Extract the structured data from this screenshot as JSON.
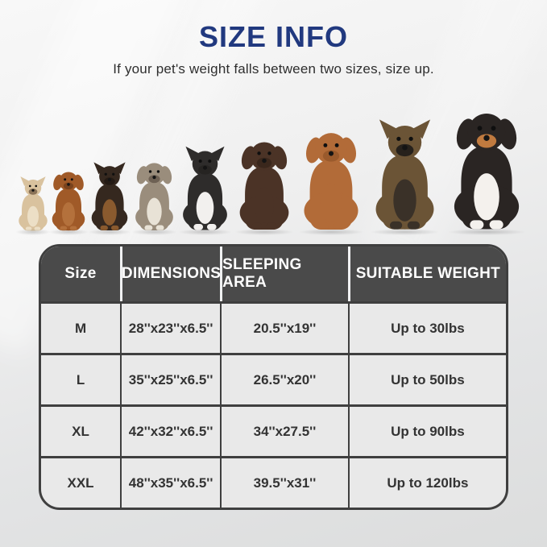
{
  "theme": {
    "title-color": "#21397f",
    "header-bg": "#4a4a4a",
    "header-text": "#ffffff",
    "cell-bg": "#e9e9e9",
    "border-color": "#3f3f3f"
  },
  "header": {
    "title": "SIZE INFO",
    "subtitle": "If your pet's weight falls between two sizes, size up."
  },
  "illustration": {
    "dogs": [
      {
        "icon": "french-bulldog-dog-icon",
        "height": 70,
        "color": "#d9c29e",
        "chest": "#ecdfc6",
        "muzzle": "#8a7257"
      },
      {
        "icon": "cavalier-spaniel-dog-icon",
        "height": 80,
        "color": "#a05a28",
        "chest": "#b4713c",
        "muzzle": "#7a431d"
      },
      {
        "icon": "miniature-pinscher-dog-icon",
        "height": 88,
        "color": "#35281f",
        "chest": "#8a5a2e",
        "muzzle": "#241a14"
      },
      {
        "icon": "english-bulldog-dog-icon",
        "height": 92,
        "color": "#9a8d7c",
        "chest": "#e8e2d6",
        "muzzle": "#6e6154"
      },
      {
        "icon": "border-collie-dog-icon",
        "height": 108,
        "color": "#2e2c2b",
        "chest": "#f2f0ee",
        "muzzle": "#262422"
      },
      {
        "icon": "chocolate-labrador-dog-icon",
        "height": 120,
        "color": "#4b3326",
        "chest": "#4b3326",
        "muzzle": "#3a271c"
      },
      {
        "icon": "vizsla-dog-icon",
        "height": 132,
        "color": "#b26b38",
        "chest": "#b26b38",
        "muzzle": "#9a5a2c"
      },
      {
        "icon": "german-shepherd-dog-icon",
        "height": 142,
        "color": "#6b5436",
        "chest": "#3a3128",
        "muzzle": "#26211c"
      },
      {
        "icon": "bernese-mountain-dog-icon",
        "height": 158,
        "color": "#2a2523",
        "chest": "#f4f1ed",
        "muzzle": "#c07a3f"
      }
    ]
  },
  "table": {
    "columns": [
      "Size",
      "DIMENSIONS",
      "SLEEPING AREA",
      "SUITABLE WEIGHT"
    ],
    "rows": [
      {
        "size": "M",
        "dimensions": "28''x23''x6.5''",
        "sleeping_area": "20.5''x19''",
        "suitable_weight": "Up to 30lbs"
      },
      {
        "size": "L",
        "dimensions": "35''x25''x6.5''",
        "sleeping_area": "26.5''x20''",
        "suitable_weight": "Up to 50lbs"
      },
      {
        "size": "XL",
        "dimensions": "42''x32''x6.5''",
        "sleeping_area": "34''x27.5''",
        "suitable_weight": "Up to 90lbs"
      },
      {
        "size": "XXL",
        "dimensions": "48''x35''x6.5''",
        "sleeping_area": "39.5''x31''",
        "suitable_weight": "Up to 120lbs"
      }
    ]
  }
}
